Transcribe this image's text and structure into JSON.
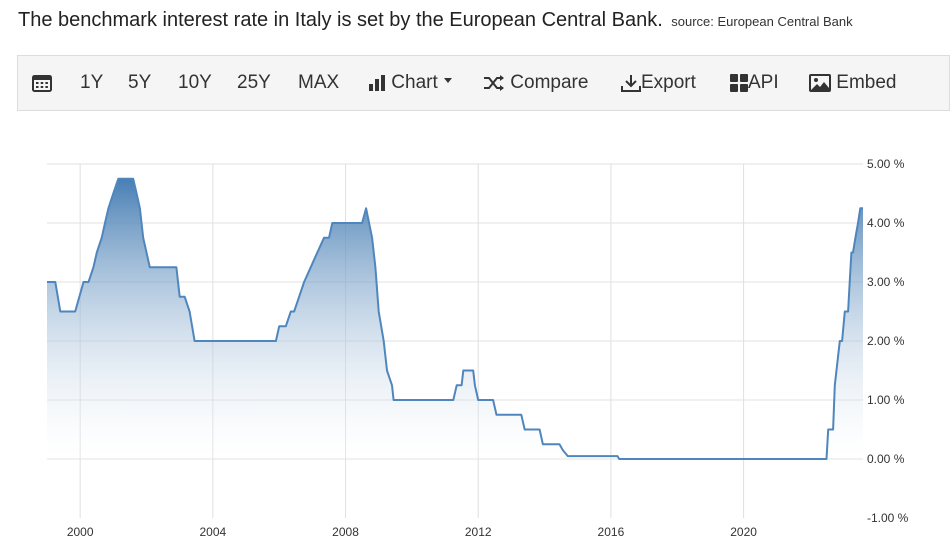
{
  "header": {
    "title": "The benchmark interest rate in Italy is set by the European Central Bank.",
    "source": "source: European Central Bank"
  },
  "toolbar": {
    "ranges": [
      "1Y",
      "5Y",
      "10Y",
      "25Y",
      "MAX"
    ],
    "chart_label": "Chart",
    "compare_label": "Compare",
    "export_label": "Export",
    "api_label": "API",
    "embed_label": "Embed"
  },
  "colors": {
    "line": "#4f86bd",
    "fill_top": "#3f78b0",
    "fill_bottom": "#ffffff",
    "grid": "#e0e0e0"
  },
  "chart_data": {
    "type": "area",
    "title": "",
    "xlabel": "",
    "ylabel": "",
    "xlim": [
      1999.0,
      2023.6
    ],
    "ylim": [
      -1.0,
      5.0
    ],
    "x_ticks": [
      2000,
      2004,
      2008,
      2012,
      2016,
      2020
    ],
    "y_ticks": [
      {
        "value": 5,
        "label": "5.00 %"
      },
      {
        "value": 4,
        "label": "4.00 %"
      },
      {
        "value": 3,
        "label": "3.00 %"
      },
      {
        "value": 2,
        "label": "2.00 %"
      },
      {
        "value": 1,
        "label": "1.00 %"
      },
      {
        "value": 0,
        "label": "0.00 %"
      },
      {
        "value": -1,
        "label": "-1.00 %"
      }
    ],
    "grid": true,
    "series": [
      {
        "name": "",
        "points": [
          [
            1999.0,
            3.0
          ],
          [
            1999.25,
            3.0
          ],
          [
            1999.4,
            2.5
          ],
          [
            1999.85,
            2.5
          ],
          [
            2000.1,
            3.0
          ],
          [
            2000.25,
            3.0
          ],
          [
            2000.4,
            3.25
          ],
          [
            2000.5,
            3.5
          ],
          [
            2000.65,
            3.75
          ],
          [
            2000.75,
            4.0
          ],
          [
            2000.85,
            4.25
          ],
          [
            2001.0,
            4.5
          ],
          [
            2001.15,
            4.75
          ],
          [
            2001.6,
            4.75
          ],
          [
            2001.7,
            4.5
          ],
          [
            2001.8,
            4.25
          ],
          [
            2001.9,
            3.75
          ],
          [
            2002.0,
            3.5
          ],
          [
            2002.1,
            3.25
          ],
          [
            2002.9,
            3.25
          ],
          [
            2003.0,
            2.75
          ],
          [
            2003.15,
            2.75
          ],
          [
            2003.3,
            2.5
          ],
          [
            2003.45,
            2.0
          ],
          [
            2005.9,
            2.0
          ],
          [
            2006.0,
            2.25
          ],
          [
            2006.2,
            2.25
          ],
          [
            2006.35,
            2.5
          ],
          [
            2006.45,
            2.5
          ],
          [
            2006.6,
            2.75
          ],
          [
            2006.75,
            3.0
          ],
          [
            2006.95,
            3.25
          ],
          [
            2007.15,
            3.5
          ],
          [
            2007.35,
            3.75
          ],
          [
            2007.5,
            3.75
          ],
          [
            2007.6,
            4.0
          ],
          [
            2008.5,
            4.0
          ],
          [
            2008.62,
            4.25
          ],
          [
            2008.8,
            3.75
          ],
          [
            2008.9,
            3.25
          ],
          [
            2009.0,
            2.5
          ],
          [
            2009.15,
            2.0
          ],
          [
            2009.25,
            1.5
          ],
          [
            2009.4,
            1.25
          ],
          [
            2009.45,
            1.0
          ],
          [
            2011.25,
            1.0
          ],
          [
            2011.35,
            1.25
          ],
          [
            2011.5,
            1.25
          ],
          [
            2011.55,
            1.5
          ],
          [
            2011.85,
            1.5
          ],
          [
            2011.9,
            1.25
          ],
          [
            2012.0,
            1.0
          ],
          [
            2012.45,
            1.0
          ],
          [
            2012.55,
            0.75
          ],
          [
            2013.3,
            0.75
          ],
          [
            2013.4,
            0.5
          ],
          [
            2013.85,
            0.5
          ],
          [
            2013.95,
            0.25
          ],
          [
            2014.45,
            0.25
          ],
          [
            2014.55,
            0.15
          ],
          [
            2014.7,
            0.05
          ],
          [
            2016.2,
            0.05
          ],
          [
            2016.25,
            0.0
          ],
          [
            2022.5,
            0.0
          ],
          [
            2022.55,
            0.5
          ],
          [
            2022.7,
            0.5
          ],
          [
            2022.75,
            1.25
          ],
          [
            2022.9,
            2.0
          ],
          [
            2022.97,
            2.0
          ],
          [
            2023.05,
            2.5
          ],
          [
            2023.15,
            2.5
          ],
          [
            2023.2,
            3.0
          ],
          [
            2023.25,
            3.5
          ],
          [
            2023.3,
            3.5
          ],
          [
            2023.37,
            3.75
          ],
          [
            2023.45,
            4.0
          ],
          [
            2023.52,
            4.25
          ],
          [
            2023.6,
            4.25
          ]
        ]
      }
    ]
  }
}
